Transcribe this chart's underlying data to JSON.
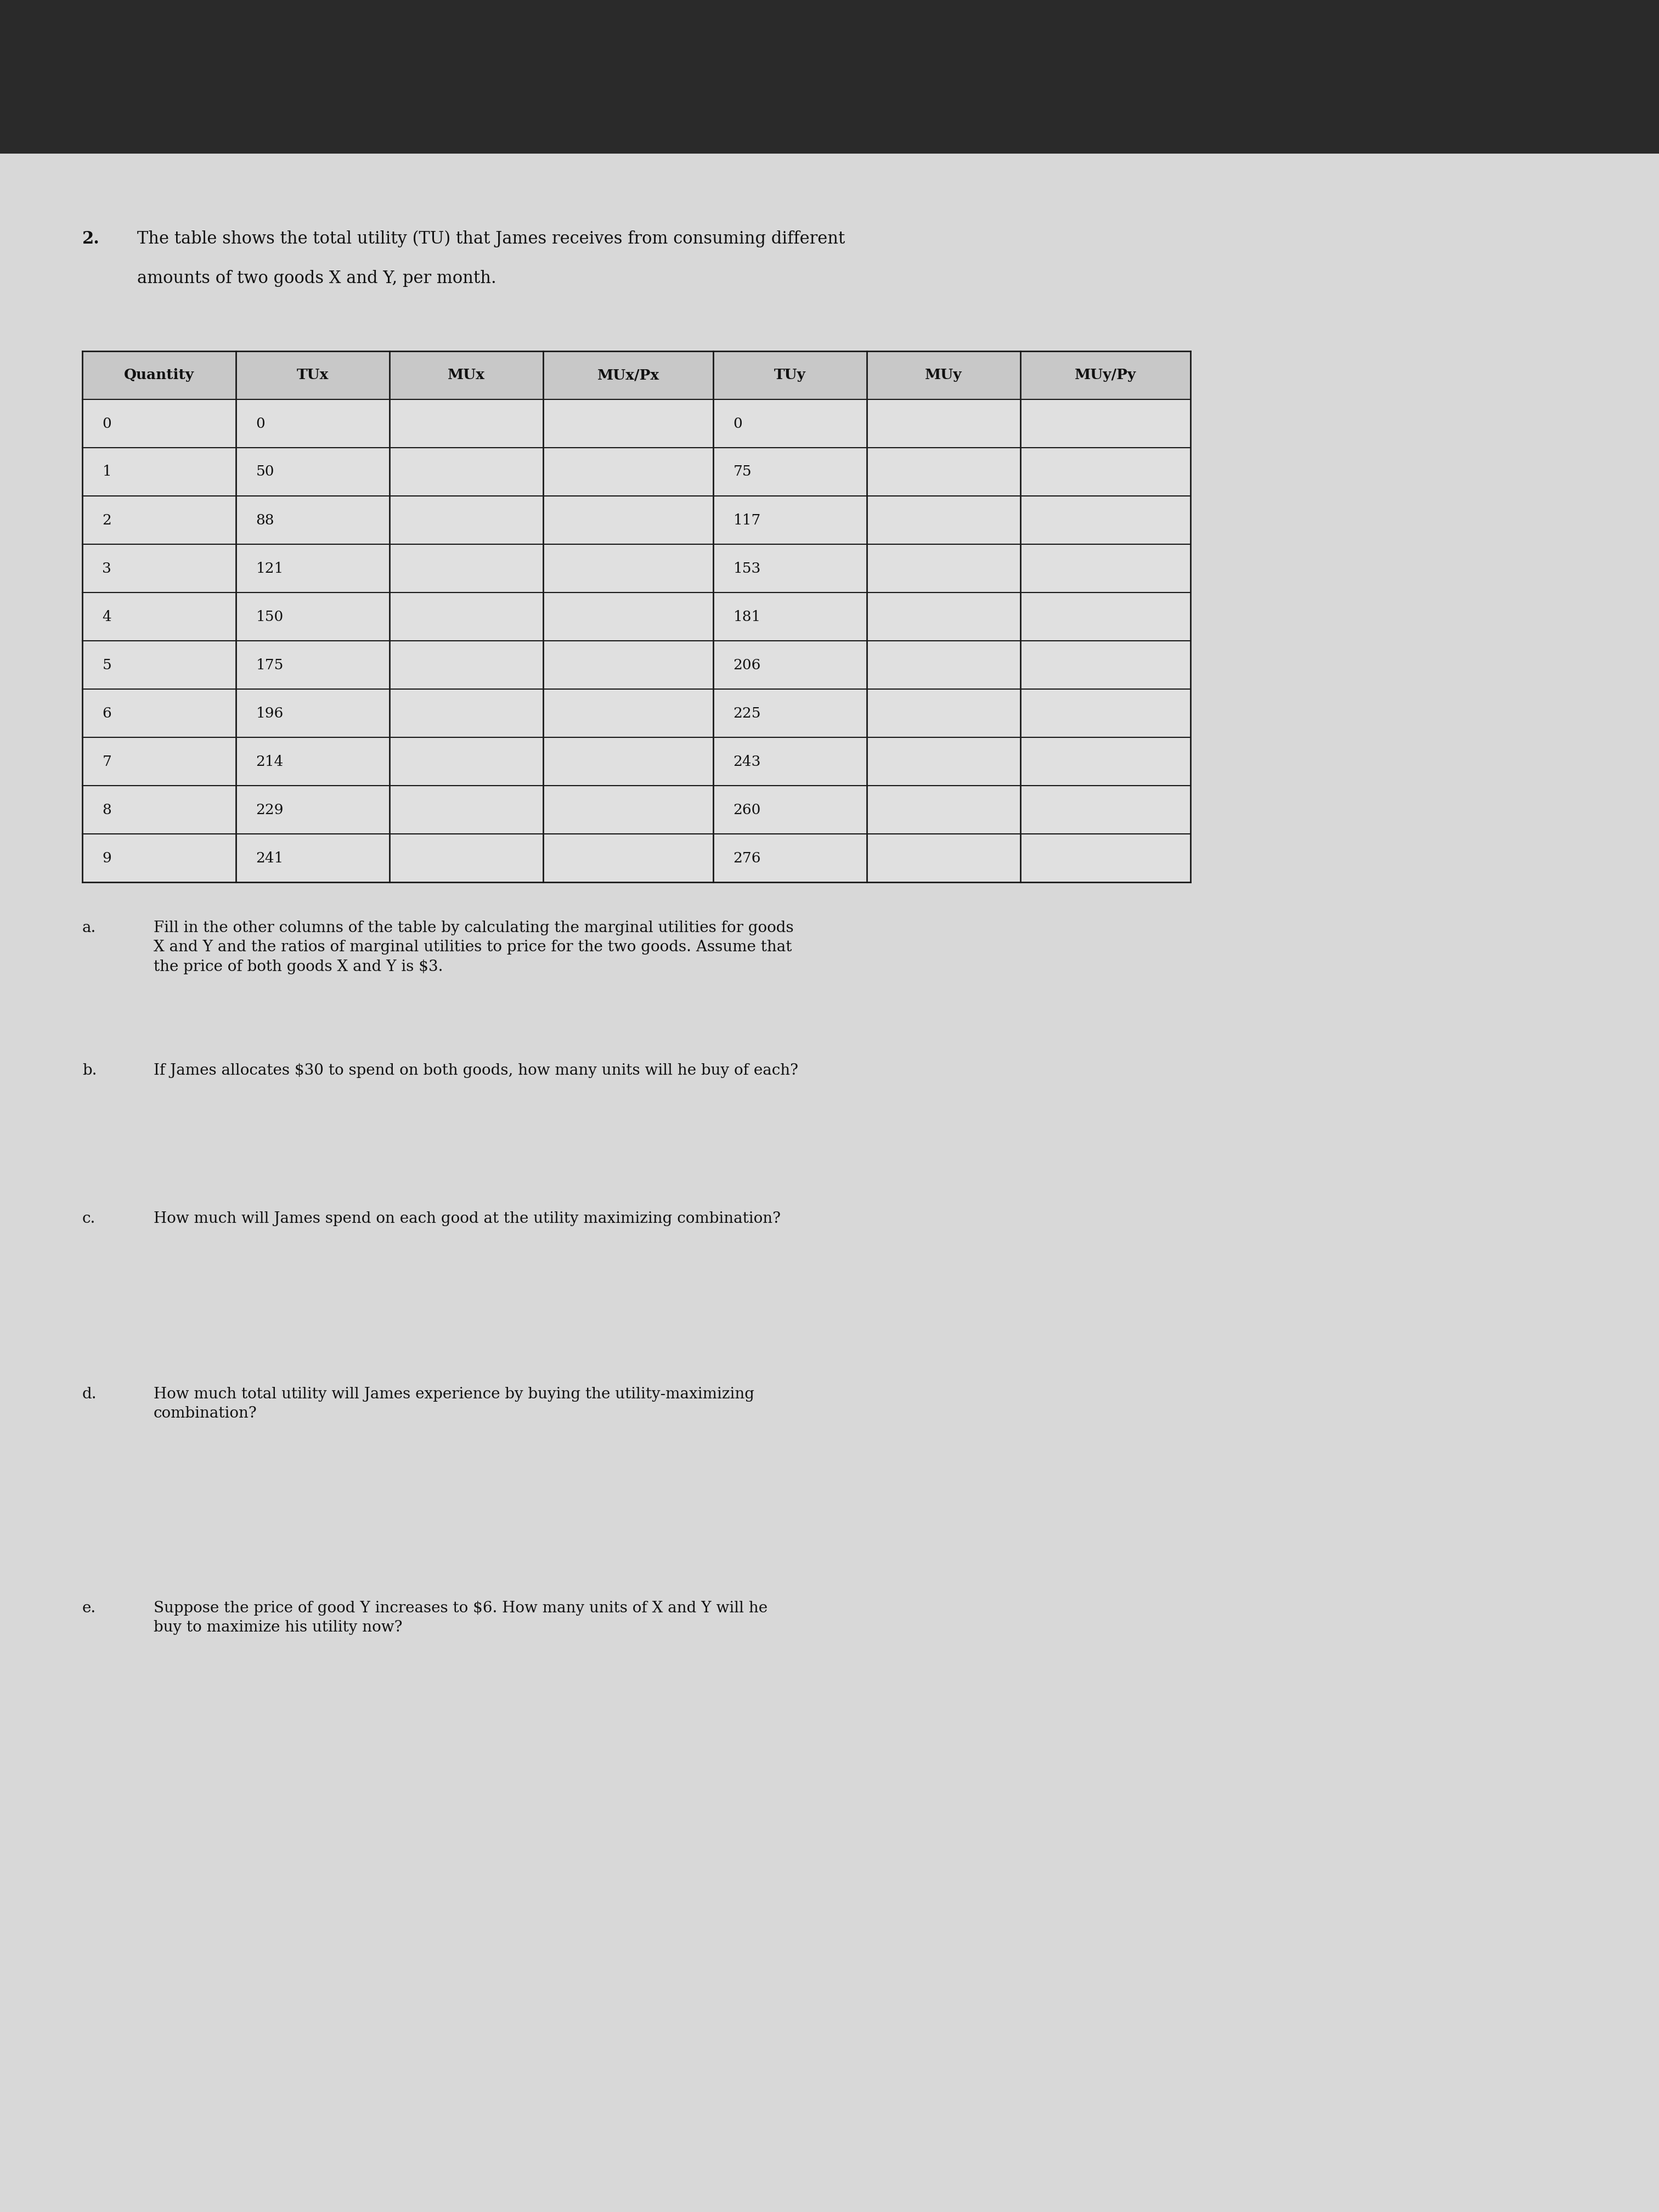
{
  "title_number": "2.",
  "title_line1": "The table shows the total utility (TU) that James receives from consuming different",
  "title_line2": "amounts of two goods X and Y, per month.",
  "table_headers": [
    "Quantity",
    "TUx",
    "MUx",
    "MUx/Px",
    "TUy",
    "MUy",
    "MUy/Py"
  ],
  "table_rows": [
    [
      "0",
      "0",
      "",
      "",
      "0",
      "",
      ""
    ],
    [
      "1",
      "50",
      "",
      "",
      "75",
      "",
      ""
    ],
    [
      "2",
      "88",
      "",
      "",
      "117",
      "",
      ""
    ],
    [
      "3",
      "121",
      "",
      "",
      "153",
      "",
      ""
    ],
    [
      "4",
      "150",
      "",
      "",
      "181",
      "",
      ""
    ],
    [
      "5",
      "175",
      "",
      "",
      "206",
      "",
      ""
    ],
    [
      "6",
      "196",
      "",
      "",
      "225",
      "",
      ""
    ],
    [
      "7",
      "214",
      "",
      "",
      "243",
      "",
      ""
    ],
    [
      "8",
      "229",
      "",
      "",
      "260",
      "",
      ""
    ],
    [
      "9",
      "241",
      "",
      "",
      "276",
      "",
      ""
    ]
  ],
  "questions": [
    {
      "label": "a.",
      "text": "Fill in the other columns of the table by calculating the marginal utilities for goods\nX and Y and the ratios of marginal utilities to price for the two goods. Assume that\nthe price of both goods X and Y is $3."
    },
    {
      "label": "b.",
      "text": "If James allocates $30 to spend on both goods, how many units will he buy of each?"
    },
    {
      "label": "c.",
      "text": "How much will James spend on each good at the utility maximizing combination?"
    },
    {
      "label": "d.",
      "text": "How much total utility will James experience by buying the utility-maximizing\ncombination?"
    },
    {
      "label": "e.",
      "text": "Suppose the price of good Y increases to $6. How many units of X and Y will he\nbuy to maximize his utility now?"
    }
  ],
  "bg_top": "#2a2a2a",
  "bg_outer": "#888888",
  "paper_color": "#d8d8d8",
  "text_color": "#111111",
  "table_line_color": "#1a1a1a",
  "header_bg": "#c8c8c8",
  "row_bg": "#e0e0e0",
  "font_size_title": 22,
  "font_size_table_header": 19,
  "font_size_table_data": 19,
  "font_size_questions": 20
}
